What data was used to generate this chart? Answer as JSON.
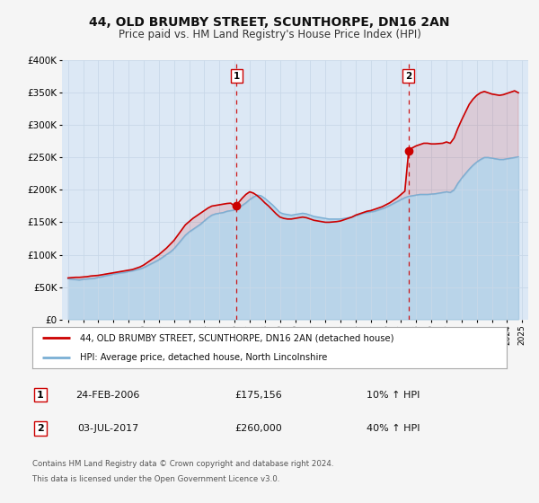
{
  "title": "44, OLD BRUMBY STREET, SCUNTHORPE, DN16 2AN",
  "subtitle": "Price paid vs. HM Land Registry's House Price Index (HPI)",
  "title_fontsize": 10,
  "subtitle_fontsize": 8.5,
  "background_color": "#f5f5f5",
  "plot_bg_color": "#dce8f5",
  "grid_color": "#c8d8e8",
  "red_line_color": "#cc0000",
  "blue_line_color": "#7aafd4",
  "ylim": [
    0,
    400000
  ],
  "yticks": [
    0,
    50000,
    100000,
    150000,
    200000,
    250000,
    300000,
    350000,
    400000
  ],
  "ytick_labels": [
    "£0",
    "£50K",
    "£100K",
    "£150K",
    "£200K",
    "£250K",
    "£300K",
    "£350K",
    "£400K"
  ],
  "xlim_start": 1994.6,
  "xlim_end": 2025.4,
  "xtick_years": [
    1995,
    1996,
    1997,
    1998,
    1999,
    2000,
    2001,
    2002,
    2003,
    2004,
    2005,
    2006,
    2007,
    2008,
    2009,
    2010,
    2011,
    2012,
    2013,
    2014,
    2015,
    2016,
    2017,
    2018,
    2019,
    2020,
    2021,
    2022,
    2023,
    2024,
    2025
  ],
  "marker1_x": 2006.13,
  "marker1_y": 175156,
  "marker1_label": "1",
  "marker1_date": "24-FEB-2006",
  "marker1_price": "£175,156",
  "marker1_hpi": "10% ↑ HPI",
  "marker2_x": 2017.5,
  "marker2_y": 260000,
  "marker2_label": "2",
  "marker2_date": "03-JUL-2017",
  "marker2_price": "£260,000",
  "marker2_hpi": "40% ↑ HPI",
  "legend_line1": "44, OLD BRUMBY STREET, SCUNTHORPE, DN16 2AN (detached house)",
  "legend_line2": "HPI: Average price, detached house, North Lincolnshire",
  "footer_line1": "Contains HM Land Registry data © Crown copyright and database right 2024.",
  "footer_line2": "This data is licensed under the Open Government Licence v3.0.",
  "hpi_data": [
    [
      1995.0,
      63000
    ],
    [
      1995.25,
      62000
    ],
    [
      1995.5,
      61500
    ],
    [
      1995.75,
      61000
    ],
    [
      1996.0,
      62000
    ],
    [
      1996.25,
      62500
    ],
    [
      1996.5,
      63000
    ],
    [
      1996.75,
      63500
    ],
    [
      1997.0,
      65000
    ],
    [
      1997.25,
      66000
    ],
    [
      1997.5,
      67500
    ],
    [
      1997.75,
      68500
    ],
    [
      1998.0,
      70000
    ],
    [
      1998.25,
      71000
    ],
    [
      1998.5,
      72000
    ],
    [
      1998.75,
      72500
    ],
    [
      1999.0,
      74000
    ],
    [
      1999.25,
      75000
    ],
    [
      1999.5,
      76500
    ],
    [
      1999.75,
      78000
    ],
    [
      2000.0,
      80000
    ],
    [
      2000.25,
      83000
    ],
    [
      2000.5,
      86000
    ],
    [
      2000.75,
      89000
    ],
    [
      2001.0,
      92000
    ],
    [
      2001.25,
      96000
    ],
    [
      2001.5,
      100000
    ],
    [
      2001.75,
      104000
    ],
    [
      2002.0,
      109000
    ],
    [
      2002.25,
      116000
    ],
    [
      2002.5,
      123000
    ],
    [
      2002.75,
      130000
    ],
    [
      2003.0,
      135000
    ],
    [
      2003.25,
      139000
    ],
    [
      2003.5,
      143000
    ],
    [
      2003.75,
      147000
    ],
    [
      2004.0,
      152000
    ],
    [
      2004.25,
      157000
    ],
    [
      2004.5,
      161000
    ],
    [
      2004.75,
      163000
    ],
    [
      2005.0,
      164000
    ],
    [
      2005.25,
      165000
    ],
    [
      2005.5,
      167000
    ],
    [
      2005.75,
      168000
    ],
    [
      2006.0,
      169000
    ],
    [
      2006.25,
      172000
    ],
    [
      2006.5,
      176000
    ],
    [
      2006.75,
      180000
    ],
    [
      2007.0,
      185000
    ],
    [
      2007.25,
      189000
    ],
    [
      2007.5,
      192000
    ],
    [
      2007.75,
      191000
    ],
    [
      2008.0,
      187000
    ],
    [
      2008.25,
      182000
    ],
    [
      2008.5,
      177000
    ],
    [
      2008.75,
      171000
    ],
    [
      2009.0,
      165000
    ],
    [
      2009.25,
      163000
    ],
    [
      2009.5,
      162000
    ],
    [
      2009.75,
      161000
    ],
    [
      2010.0,
      162000
    ],
    [
      2010.25,
      163000
    ],
    [
      2010.5,
      164000
    ],
    [
      2010.75,
      163000
    ],
    [
      2011.0,
      161000
    ],
    [
      2011.25,
      159000
    ],
    [
      2011.5,
      158000
    ],
    [
      2011.75,
      157000
    ],
    [
      2012.0,
      156000
    ],
    [
      2012.25,
      155000
    ],
    [
      2012.5,
      155000
    ],
    [
      2012.75,
      155000
    ],
    [
      2013.0,
      155000
    ],
    [
      2013.25,
      156000
    ],
    [
      2013.5,
      157000
    ],
    [
      2013.75,
      158000
    ],
    [
      2014.0,
      160000
    ],
    [
      2014.25,
      162000
    ],
    [
      2014.5,
      164000
    ],
    [
      2014.75,
      165000
    ],
    [
      2015.0,
      166000
    ],
    [
      2015.25,
      167000
    ],
    [
      2015.5,
      169000
    ],
    [
      2015.75,
      171000
    ],
    [
      2016.0,
      173000
    ],
    [
      2016.25,
      176000
    ],
    [
      2016.5,
      179000
    ],
    [
      2016.75,
      182000
    ],
    [
      2017.0,
      185000
    ],
    [
      2017.25,
      188000
    ],
    [
      2017.5,
      190000
    ],
    [
      2017.75,
      191000
    ],
    [
      2018.0,
      192000
    ],
    [
      2018.25,
      193000
    ],
    [
      2018.5,
      193000
    ],
    [
      2018.75,
      193000
    ],
    [
      2019.0,
      193500
    ],
    [
      2019.25,
      194000
    ],
    [
      2019.5,
      195000
    ],
    [
      2019.75,
      196000
    ],
    [
      2020.0,
      197000
    ],
    [
      2020.25,
      196000
    ],
    [
      2020.5,
      200000
    ],
    [
      2020.75,
      210000
    ],
    [
      2021.0,
      218000
    ],
    [
      2021.25,
      225000
    ],
    [
      2021.5,
      232000
    ],
    [
      2021.75,
      238000
    ],
    [
      2022.0,
      243000
    ],
    [
      2022.25,
      247000
    ],
    [
      2022.5,
      250000
    ],
    [
      2022.75,
      250000
    ],
    [
      2023.0,
      249000
    ],
    [
      2023.25,
      248000
    ],
    [
      2023.5,
      247000
    ],
    [
      2023.75,
      247000
    ],
    [
      2024.0,
      248000
    ],
    [
      2024.25,
      249000
    ],
    [
      2024.5,
      250000
    ],
    [
      2024.75,
      251000
    ]
  ],
  "property_data": [
    [
      1995.0,
      64000
    ],
    [
      1995.25,
      64500
    ],
    [
      1995.5,
      65000
    ],
    [
      1995.75,
      65000
    ],
    [
      1996.0,
      65500
    ],
    [
      1996.25,
      66000
    ],
    [
      1996.5,
      67000
    ],
    [
      1996.75,
      67500
    ],
    [
      1997.0,
      68000
    ],
    [
      1997.25,
      69000
    ],
    [
      1997.5,
      70000
    ],
    [
      1997.75,
      71000
    ],
    [
      1998.0,
      72000
    ],
    [
      1998.25,
      73000
    ],
    [
      1998.5,
      74000
    ],
    [
      1998.75,
      75000
    ],
    [
      1999.0,
      76000
    ],
    [
      1999.25,
      77000
    ],
    [
      1999.5,
      79000
    ],
    [
      1999.75,
      81000
    ],
    [
      2000.0,
      84000
    ],
    [
      2000.25,
      88000
    ],
    [
      2000.5,
      92000
    ],
    [
      2000.75,
      96000
    ],
    [
      2001.0,
      100000
    ],
    [
      2001.25,
      105000
    ],
    [
      2001.5,
      110000
    ],
    [
      2001.75,
      116000
    ],
    [
      2002.0,
      122000
    ],
    [
      2002.25,
      130000
    ],
    [
      2002.5,
      138000
    ],
    [
      2002.75,
      146000
    ],
    [
      2003.0,
      151000
    ],
    [
      2003.25,
      156000
    ],
    [
      2003.5,
      160000
    ],
    [
      2003.75,
      164000
    ],
    [
      2004.0,
      168000
    ],
    [
      2004.25,
      172000
    ],
    [
      2004.5,
      175000
    ],
    [
      2004.75,
      176000
    ],
    [
      2005.0,
      177000
    ],
    [
      2005.25,
      178000
    ],
    [
      2005.5,
      179000
    ],
    [
      2005.75,
      179500
    ],
    [
      2006.0,
      175156
    ],
    [
      2006.25,
      180000
    ],
    [
      2006.5,
      187000
    ],
    [
      2006.75,
      193000
    ],
    [
      2007.0,
      197000
    ],
    [
      2007.25,
      195000
    ],
    [
      2007.5,
      191000
    ],
    [
      2007.75,
      186000
    ],
    [
      2008.0,
      180000
    ],
    [
      2008.25,
      175000
    ],
    [
      2008.5,
      169000
    ],
    [
      2008.75,
      163000
    ],
    [
      2009.0,
      158000
    ],
    [
      2009.25,
      156000
    ],
    [
      2009.5,
      155000
    ],
    [
      2009.75,
      155000
    ],
    [
      2010.0,
      156000
    ],
    [
      2010.25,
      157000
    ],
    [
      2010.5,
      158000
    ],
    [
      2010.75,
      157000
    ],
    [
      2011.0,
      155000
    ],
    [
      2011.25,
      153000
    ],
    [
      2011.5,
      152000
    ],
    [
      2011.75,
      151000
    ],
    [
      2012.0,
      150000
    ],
    [
      2012.25,
      150000
    ],
    [
      2012.5,
      150500
    ],
    [
      2012.75,
      151000
    ],
    [
      2013.0,
      152000
    ],
    [
      2013.25,
      154000
    ],
    [
      2013.5,
      156000
    ],
    [
      2013.75,
      158000
    ],
    [
      2014.0,
      161000
    ],
    [
      2014.25,
      163000
    ],
    [
      2014.5,
      165000
    ],
    [
      2014.75,
      167000
    ],
    [
      2015.0,
      168000
    ],
    [
      2015.25,
      170000
    ],
    [
      2015.5,
      172000
    ],
    [
      2015.75,
      174000
    ],
    [
      2016.0,
      177000
    ],
    [
      2016.25,
      180000
    ],
    [
      2016.5,
      184000
    ],
    [
      2016.75,
      188000
    ],
    [
      2017.0,
      193000
    ],
    [
      2017.25,
      198000
    ],
    [
      2017.5,
      260000
    ],
    [
      2017.75,
      265000
    ],
    [
      2018.0,
      268000
    ],
    [
      2018.25,
      270000
    ],
    [
      2018.5,
      272000
    ],
    [
      2018.75,
      272000
    ],
    [
      2019.0,
      271000
    ],
    [
      2019.25,
      271000
    ],
    [
      2019.5,
      271500
    ],
    [
      2019.75,
      272000
    ],
    [
      2020.0,
      274000
    ],
    [
      2020.25,
      272000
    ],
    [
      2020.5,
      280000
    ],
    [
      2020.75,
      295000
    ],
    [
      2021.0,
      308000
    ],
    [
      2021.25,
      320000
    ],
    [
      2021.5,
      332000
    ],
    [
      2021.75,
      340000
    ],
    [
      2022.0,
      346000
    ],
    [
      2022.25,
      350000
    ],
    [
      2022.5,
      352000
    ],
    [
      2022.75,
      350000
    ],
    [
      2023.0,
      348000
    ],
    [
      2023.25,
      347000
    ],
    [
      2023.5,
      346000
    ],
    [
      2023.75,
      347000
    ],
    [
      2024.0,
      349000
    ],
    [
      2024.25,
      351000
    ],
    [
      2024.5,
      353000
    ],
    [
      2024.75,
      350000
    ]
  ]
}
